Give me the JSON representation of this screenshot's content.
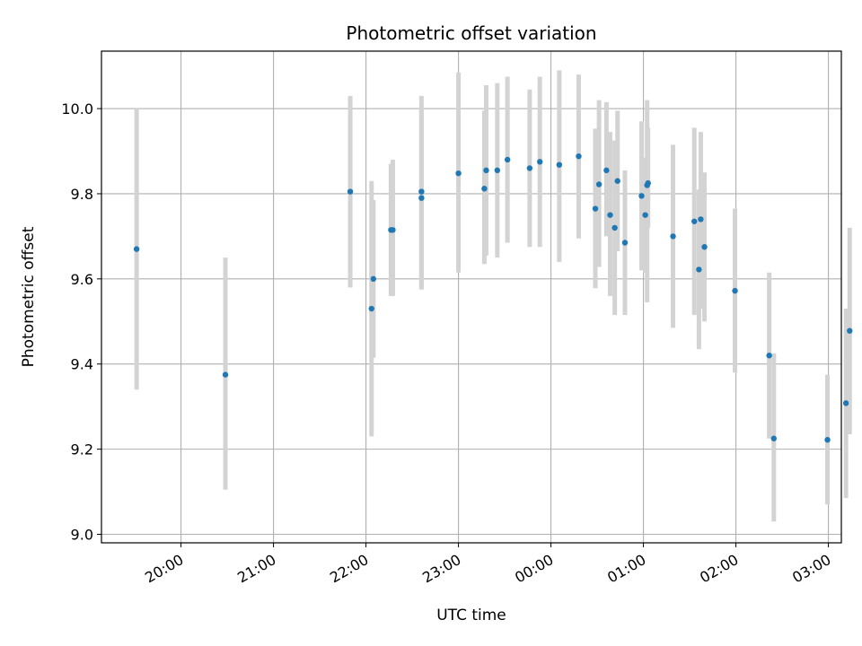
{
  "chart_data": {
    "type": "scatter",
    "title": "Photometric offset variation",
    "xlabel": "UTC time",
    "ylabel": "Photometric offset",
    "x_unit": "hours since 19:00 UTC",
    "xlim": [
      0.14,
      8.14
    ],
    "ylim": [
      8.98,
      10.135
    ],
    "x_ticks": [
      {
        "x": 1,
        "label": "20:00"
      },
      {
        "x": 2,
        "label": "21:00"
      },
      {
        "x": 3,
        "label": "22:00"
      },
      {
        "x": 4,
        "label": "23:00"
      },
      {
        "x": 5,
        "label": "00:00"
      },
      {
        "x": 6,
        "label": "01:00"
      },
      {
        "x": 7,
        "label": "02:00"
      },
      {
        "x": 8,
        "label": "03:00"
      }
    ],
    "y_ticks": [
      {
        "y": 9.0,
        "label": "9.0"
      },
      {
        "y": 9.2,
        "label": "9.2"
      },
      {
        "y": 9.4,
        "label": "9.4"
      },
      {
        "y": 9.6,
        "label": "9.6"
      },
      {
        "y": 9.8,
        "label": "9.8"
      },
      {
        "y": 10.0,
        "label": "10.0"
      }
    ],
    "grid": true,
    "marker_color": "#1f77b4",
    "errorbar_color": "#d3d3d3",
    "points": [
      {
        "x": 0.52,
        "y": 9.67,
        "lo": 9.34,
        "hi": 10.0
      },
      {
        "x": 1.48,
        "y": 9.375,
        "lo": 9.105,
        "hi": 9.65
      },
      {
        "x": 2.83,
        "y": 9.805,
        "lo": 9.58,
        "hi": 10.03
      },
      {
        "x": 3.06,
        "y": 9.53,
        "lo": 9.23,
        "hi": 9.83
      },
      {
        "x": 3.08,
        "y": 9.6,
        "lo": 9.415,
        "hi": 9.785
      },
      {
        "x": 3.27,
        "y": 9.715,
        "lo": 9.56,
        "hi": 9.87
      },
      {
        "x": 3.29,
        "y": 9.715,
        "lo": 9.56,
        "hi": 9.88
      },
      {
        "x": 3.6,
        "y": 9.805,
        "lo": 9.58,
        "hi": 10.03
      },
      {
        "x": 3.6,
        "y": 9.79,
        "lo": 9.575,
        "hi": 10.005
      },
      {
        "x": 4.0,
        "y": 9.848,
        "lo": 9.615,
        "hi": 10.085
      },
      {
        "x": 4.28,
        "y": 9.812,
        "lo": 9.635,
        "hi": 9.995
      },
      {
        "x": 4.3,
        "y": 9.855,
        "lo": 9.655,
        "hi": 10.055
      },
      {
        "x": 4.42,
        "y": 9.855,
        "lo": 9.65,
        "hi": 10.06
      },
      {
        "x": 4.53,
        "y": 9.88,
        "lo": 9.685,
        "hi": 10.075
      },
      {
        "x": 4.77,
        "y": 9.86,
        "lo": 9.675,
        "hi": 10.045
      },
      {
        "x": 4.88,
        "y": 9.875,
        "lo": 9.675,
        "hi": 10.075
      },
      {
        "x": 5.09,
        "y": 9.868,
        "lo": 9.64,
        "hi": 10.09
      },
      {
        "x": 5.3,
        "y": 9.888,
        "lo": 9.695,
        "hi": 10.08
      },
      {
        "x": 5.48,
        "y": 9.765,
        "lo": 9.578,
        "hi": 9.953
      },
      {
        "x": 5.52,
        "y": 9.822,
        "lo": 9.628,
        "hi": 10.02
      },
      {
        "x": 5.6,
        "y": 9.855,
        "lo": 9.7,
        "hi": 10.015
      },
      {
        "x": 5.64,
        "y": 9.75,
        "lo": 9.56,
        "hi": 9.945
      },
      {
        "x": 5.69,
        "y": 9.72,
        "lo": 9.515,
        "hi": 9.925
      },
      {
        "x": 5.72,
        "y": 9.83,
        "lo": 9.665,
        "hi": 9.995
      },
      {
        "x": 5.8,
        "y": 9.685,
        "lo": 9.515,
        "hi": 9.855
      },
      {
        "x": 5.98,
        "y": 9.795,
        "lo": 9.62,
        "hi": 9.97
      },
      {
        "x": 6.02,
        "y": 9.75,
        "lo": 9.615,
        "hi": 9.885
      },
      {
        "x": 6.04,
        "y": 9.82,
        "lo": 9.545,
        "hi": 10.02
      },
      {
        "x": 6.05,
        "y": 9.825,
        "lo": 9.72,
        "hi": 9.955
      },
      {
        "x": 6.32,
        "y": 9.7,
        "lo": 9.485,
        "hi": 9.915
      },
      {
        "x": 6.55,
        "y": 9.735,
        "lo": 9.515,
        "hi": 9.955
      },
      {
        "x": 6.6,
        "y": 9.622,
        "lo": 9.435,
        "hi": 9.81
      },
      {
        "x": 6.62,
        "y": 9.74,
        "lo": 9.53,
        "hi": 9.945
      },
      {
        "x": 6.66,
        "y": 9.675,
        "lo": 9.5,
        "hi": 9.85
      },
      {
        "x": 6.99,
        "y": 9.572,
        "lo": 9.38,
        "hi": 9.765
      },
      {
        "x": 7.36,
        "y": 9.42,
        "lo": 9.225,
        "hi": 9.615
      },
      {
        "x": 7.41,
        "y": 9.225,
        "lo": 9.03,
        "hi": 9.425
      },
      {
        "x": 7.99,
        "y": 9.222,
        "lo": 9.07,
        "hi": 9.375
      },
      {
        "x": 8.19,
        "y": 9.308,
        "lo": 9.085,
        "hi": 9.53
      },
      {
        "x": 8.23,
        "y": 9.478,
        "lo": 9.235,
        "hi": 9.72
      }
    ]
  }
}
